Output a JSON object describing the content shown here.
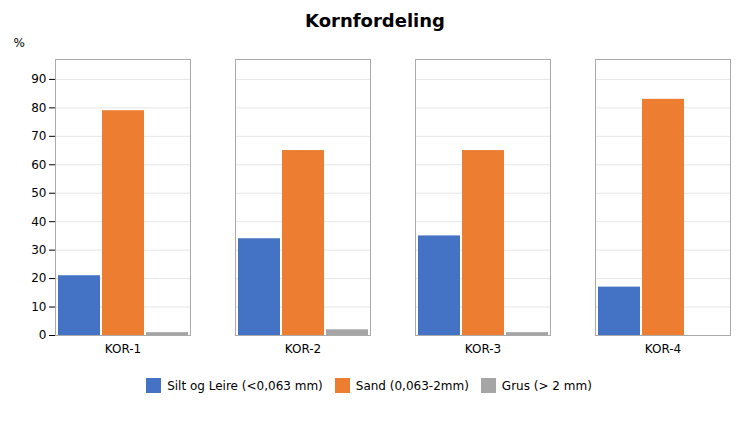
{
  "chart_data": {
    "type": "bar",
    "title": "Kornfordeling",
    "categories": [
      "KOR-1",
      "KOR-2",
      "KOR-3",
      "KOR-4"
    ],
    "series": [
      {
        "name": "Silt og Leire (<0,063 mm)",
        "color": "#4472C4",
        "values": [
          21,
          34,
          35,
          17
        ]
      },
      {
        "name": "Sand (0,063-2mm)",
        "color": "#ED7D31",
        "values": [
          79,
          65,
          65,
          83
        ]
      },
      {
        "name": "Grus (> 2 mm)",
        "color": "#A5A5A5",
        "values": [
          1,
          2,
          1,
          0
        ]
      }
    ],
    "ylabel": "%",
    "ylim": [
      0,
      97
    ],
    "yticks": [
      0,
      10,
      20,
      30,
      40,
      50,
      60,
      70,
      80,
      90
    ],
    "grid": true,
    "legend": "bottom"
  }
}
